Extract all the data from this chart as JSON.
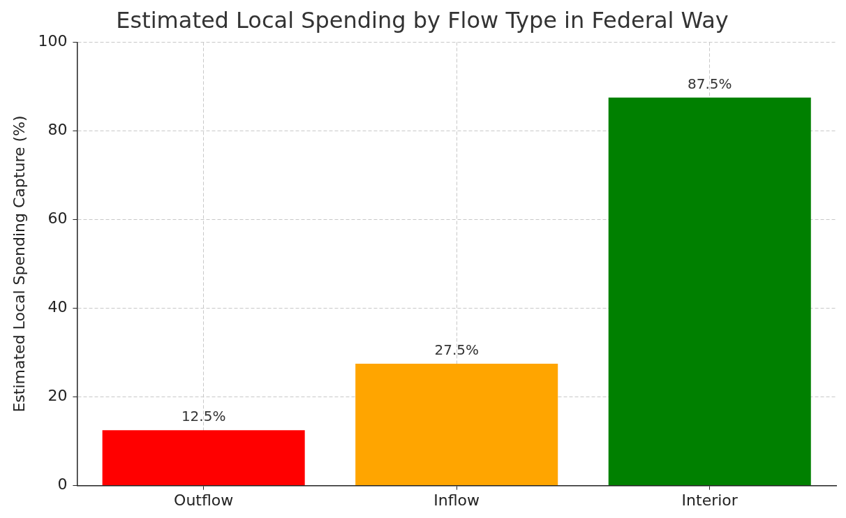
{
  "chart_data": {
    "type": "bar",
    "title": "Estimated Local Spending by Flow Type in Federal Way",
    "ylabel": "Estimated Local Spending Capture (%)",
    "categories": [
      "Outflow",
      "Inflow",
      "Interior"
    ],
    "values": [
      12.5,
      27.5,
      87.5
    ],
    "colors": [
      "#ff0000",
      "#ffa500",
      "#008000"
    ],
    "value_labels": [
      "12.5%",
      "27.5%",
      "87.5%"
    ],
    "ylim": [
      0,
      100
    ],
    "yticks": [
      0,
      20,
      40,
      60,
      80,
      100
    ],
    "grid": true,
    "legend": false
  }
}
